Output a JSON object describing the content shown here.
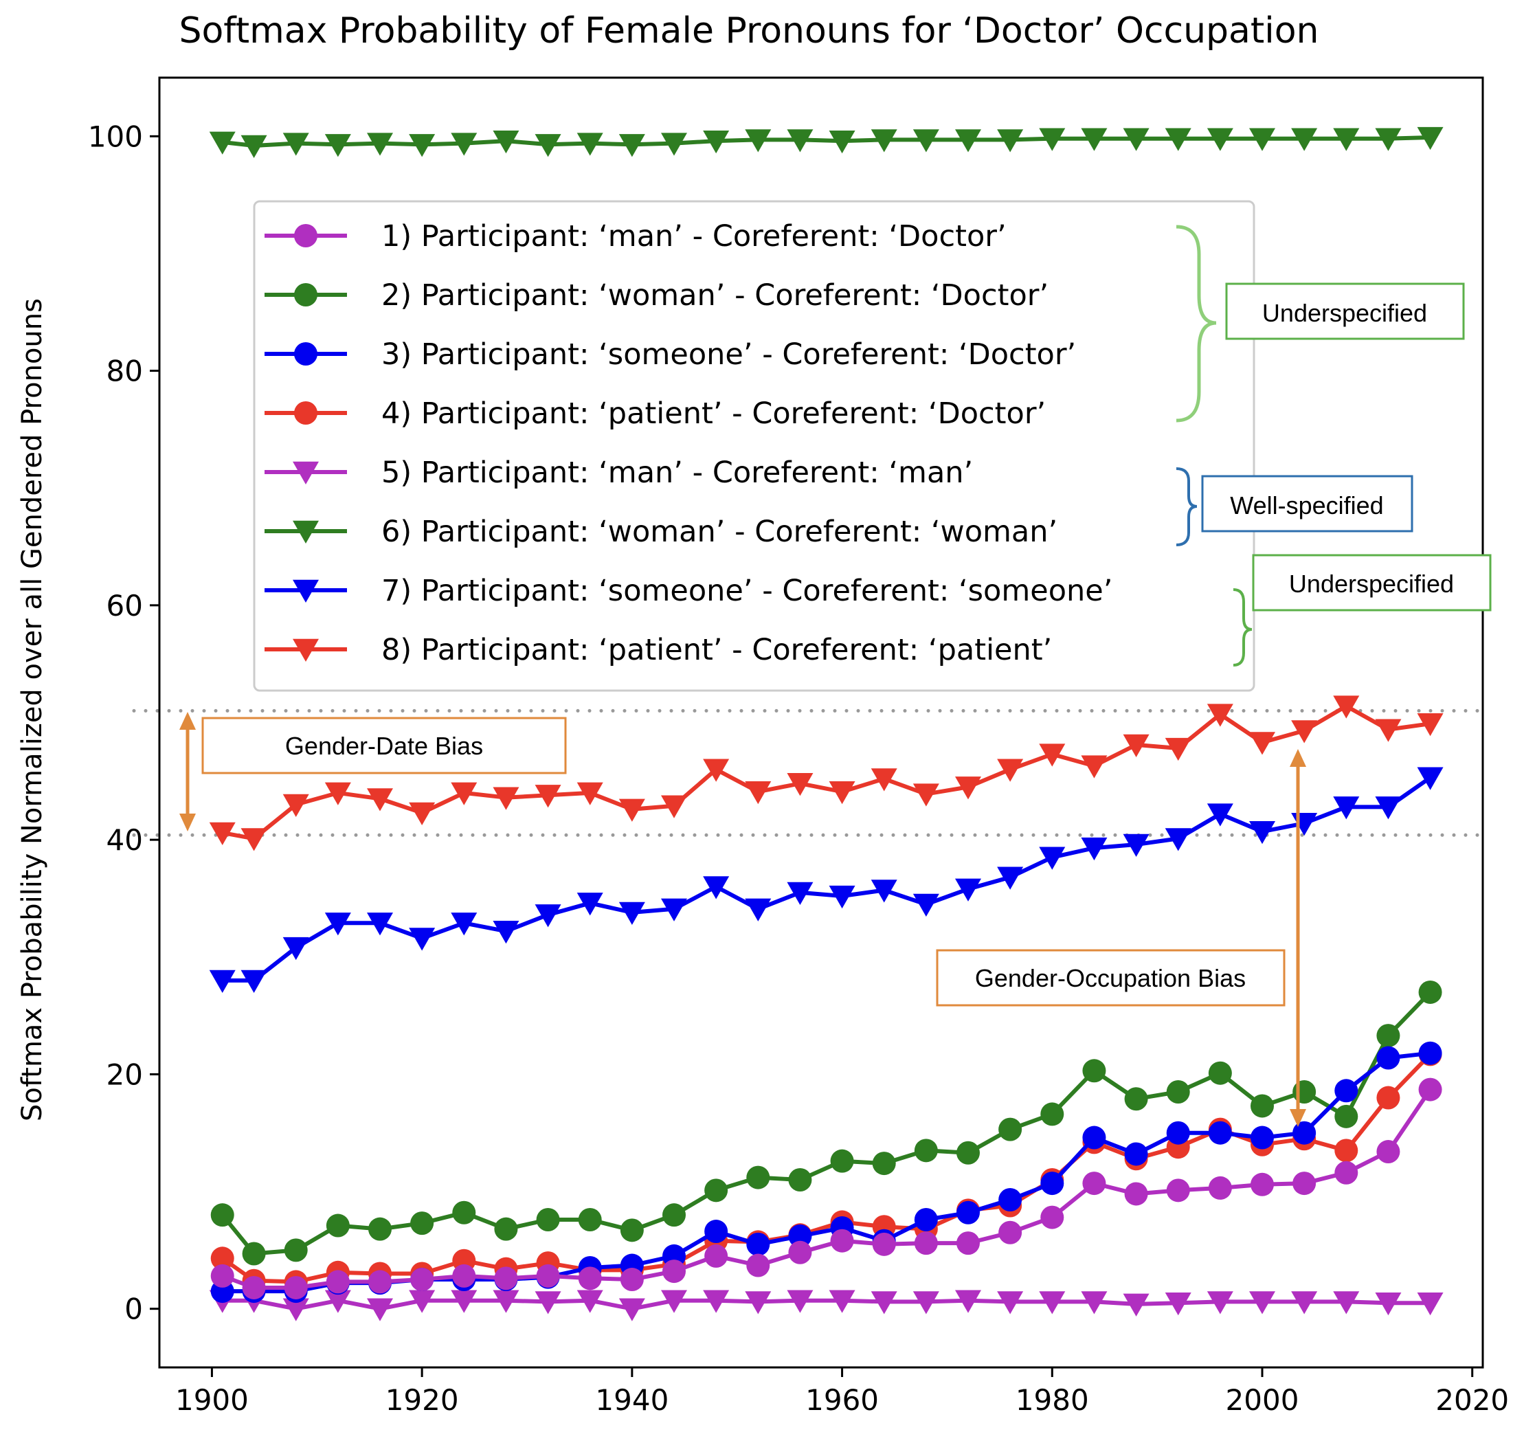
{
  "chart_data": {
    "type": "line",
    "title": "Softmax Probability of Female Pronouns for ‘Doctor’ Occupation",
    "xlabel": "",
    "ylabel": "Softmax Probability Normalized over all Gendered Pronouns",
    "xlim": [
      1895,
      2021
    ],
    "ylim": [
      -5,
      105
    ],
    "x_ticks": [
      1900,
      1920,
      1940,
      1960,
      1980,
      2000,
      2020
    ],
    "y_ticks": [
      0,
      20,
      40,
      60,
      80,
      100
    ],
    "x_tick_labels": [
      "1900",
      "1920",
      "1940",
      "1960",
      "1980",
      "2000",
      "2020"
    ],
    "y_tick_labels": [
      "0",
      "20",
      "40",
      "60",
      "80",
      "100"
    ],
    "grid": false,
    "legend_position": "upper-left",
    "x": [
      1901,
      1904,
      1908,
      1912,
      1916,
      1920,
      1924,
      1928,
      1932,
      1936,
      1940,
      1944,
      1948,
      1952,
      1956,
      1960,
      1964,
      1968,
      1972,
      1976,
      1980,
      1984,
      1988,
      1992,
      1996,
      2000,
      2004,
      2008,
      2012,
      2016
    ],
    "series": [
      {
        "name": "1)  Participant: ‘man’ - Coreferent: ‘Doctor’",
        "color": "#b02fc0",
        "marker": "circle",
        "values": [
          2.8,
          1.8,
          1.8,
          2.3,
          2.3,
          2.5,
          2.8,
          2.6,
          2.8,
          2.6,
          2.5,
          3.2,
          4.5,
          3.7,
          4.8,
          5.8,
          5.5,
          5.6,
          5.6,
          6.5,
          7.8,
          10.7,
          9.8,
          10.1,
          10.3,
          10.6,
          10.7,
          11.6,
          13.4,
          18.7
        ]
      },
      {
        "name": "2)  Participant: ‘woman’ - Coreferent: ‘Doctor’",
        "color": "#2e7d21",
        "marker": "circle",
        "values": [
          8.0,
          4.7,
          5.0,
          7.1,
          6.8,
          7.3,
          8.2,
          6.8,
          7.6,
          7.6,
          6.7,
          8.0,
          10.1,
          11.2,
          11.0,
          12.6,
          12.4,
          13.5,
          13.3,
          15.3,
          16.6,
          20.3,
          17.9,
          18.5,
          20.1,
          17.3,
          18.5,
          16.4,
          23.3,
          27.0
        ]
      },
      {
        "name": "3)  Participant: ‘someone’ - Coreferent: ‘Doctor’",
        "color": "#0000f0",
        "marker": "circle",
        "values": [
          1.5,
          1.5,
          1.5,
          2.2,
          2.2,
          2.5,
          2.5,
          2.5,
          2.7,
          3.5,
          3.7,
          4.5,
          6.6,
          5.5,
          6.2,
          6.9,
          5.8,
          7.6,
          8.2,
          9.3,
          10.7,
          14.6,
          13.2,
          15.0,
          15.0,
          14.6,
          15.0,
          18.6,
          21.4,
          21.8
        ]
      },
      {
        "name": "4)  Participant: ‘patient’ - Coreferent: ‘Doctor’",
        "color": "#e8372a",
        "marker": "circle",
        "values": [
          4.3,
          2.4,
          2.3,
          3.1,
          3.0,
          3.0,
          4.1,
          3.4,
          3.9,
          3.3,
          3.3,
          3.8,
          5.8,
          5.7,
          6.3,
          7.4,
          7.0,
          6.8,
          8.4,
          8.8,
          11.0,
          14.2,
          12.8,
          13.8,
          15.3,
          14.0,
          14.5,
          13.5,
          18.0,
          21.7
        ]
      },
      {
        "name": "5)  Participant: ‘man’ - Coreferent: ‘man’",
        "color": "#b02fc0",
        "marker": "triangle-down",
        "values": [
          0.7,
          0.7,
          0.0,
          0.7,
          0.0,
          0.7,
          0.7,
          0.7,
          0.6,
          0.7,
          0.0,
          0.7,
          0.7,
          0.6,
          0.7,
          0.7,
          0.6,
          0.6,
          0.7,
          0.6,
          0.6,
          0.6,
          0.4,
          0.5,
          0.6,
          0.6,
          0.6,
          0.6,
          0.5,
          0.5
        ]
      },
      {
        "name": "6)  Participant: ‘woman’ - Coreferent: ‘woman’",
        "color": "#2e7d21",
        "marker": "triangle-down",
        "values": [
          99.5,
          99.2,
          99.4,
          99.3,
          99.4,
          99.3,
          99.4,
          99.6,
          99.3,
          99.4,
          99.3,
          99.4,
          99.6,
          99.7,
          99.7,
          99.6,
          99.7,
          99.7,
          99.7,
          99.7,
          99.8,
          99.8,
          99.8,
          99.8,
          99.8,
          99.8,
          99.8,
          99.8,
          99.8,
          99.9
        ]
      },
      {
        "name": "7)  Participant: ‘someone’ - Coreferent: ‘someone’",
        "color": "#0000f0",
        "marker": "triangle-down",
        "values": [
          28.0,
          28.0,
          30.8,
          32.9,
          32.9,
          31.6,
          32.9,
          32.2,
          33.6,
          34.6,
          33.8,
          34.1,
          36.0,
          34.1,
          35.5,
          35.2,
          35.7,
          34.5,
          35.8,
          36.8,
          38.5,
          39.3,
          39.6,
          40.1,
          42.2,
          40.7,
          41.4,
          42.8,
          42.8,
          45.3
        ]
      },
      {
        "name": "8)  Participant: ‘patient’ - Coreferent: ‘patient’",
        "color": "#e8372a",
        "marker": "triangle-down",
        "values": [
          40.6,
          40.1,
          43.0,
          44.0,
          43.5,
          42.3,
          44.0,
          43.6,
          43.8,
          44.0,
          42.6,
          42.9,
          46.0,
          44.1,
          44.8,
          44.1,
          45.2,
          43.9,
          44.5,
          46.0,
          47.3,
          46.3,
          48.1,
          47.8,
          50.7,
          48.3,
          49.3,
          51.4,
          49.4,
          49.9
        ]
      }
    ],
    "reference_lines": [
      51.0,
      40.4
    ],
    "annotations": {
      "underspecified_top": "Underspecified",
      "well_specified": "Well-specified",
      "underspecified_bottom": "Underspecified",
      "gender_date_bias": "Gender-Date Bias",
      "gender_occupation_bias": "Gender-Occupation Bias"
    },
    "annotation_colors": {
      "underspecified": "#5cb04a",
      "brace_top": "#8fcf7a",
      "well_specified": "#2e6fae",
      "bias": "#e08a3c"
    }
  }
}
